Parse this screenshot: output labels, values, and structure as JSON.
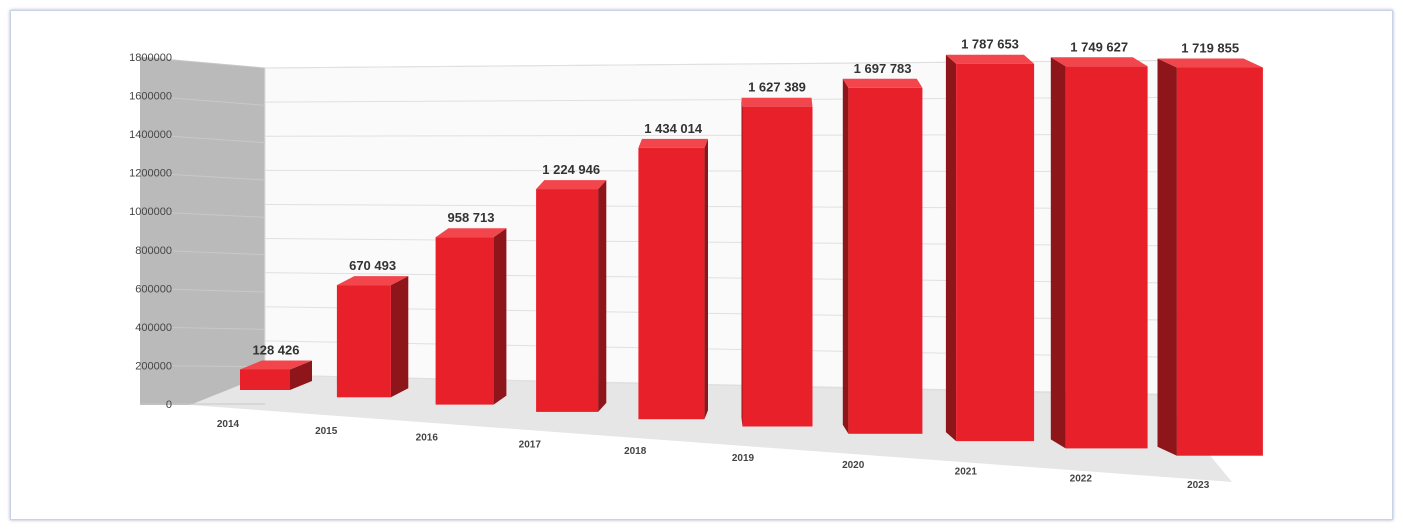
{
  "chart_data": {
    "type": "bar",
    "title": "",
    "xlabel": "",
    "ylabel": "",
    "categories": [
      "2014",
      "2015",
      "2016",
      "2017",
      "2018",
      "2019",
      "2020",
      "2021",
      "2022",
      "2023"
    ],
    "values": [
      128426,
      670493,
      958713,
      1224946,
      1434014,
      1627389,
      1697783,
      1787653,
      1749627,
      1719855
    ],
    "data_labels": [
      "128 426",
      "670 493",
      "958 713",
      "1 224 946",
      "1 434 014",
      "1 627 389",
      "1 697 783",
      "1 787 653",
      "1 749 627",
      "1 719 855"
    ],
    "yticks": [
      "0",
      "200000",
      "400000",
      "600000",
      "800000",
      "1000000",
      "1200000",
      "1400000",
      "1600000",
      "1800000"
    ],
    "ylim": [
      0,
      1800000
    ],
    "grid": true,
    "color": "#e8202a"
  }
}
